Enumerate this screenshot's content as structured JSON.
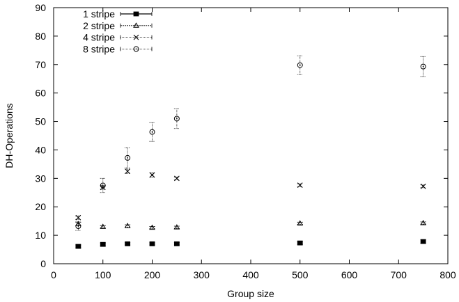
{
  "chart_data": {
    "type": "scatter",
    "title": "",
    "xlabel": "Group size",
    "ylabel": "DH-Operations",
    "xlim": [
      0,
      800
    ],
    "ylim": [
      0,
      90
    ],
    "x_ticks": [
      0,
      100,
      200,
      300,
      400,
      500,
      600,
      700,
      800
    ],
    "y_ticks": [
      0,
      10,
      20,
      30,
      40,
      50,
      60,
      70,
      80,
      90
    ],
    "grid": false,
    "legend_position": "top-left",
    "error_bars": true,
    "x": [
      50,
      100,
      150,
      200,
      250,
      500,
      750
    ],
    "series": [
      {
        "name": "1 stripe",
        "marker": "filled-square",
        "values": [
          6.1,
          6.8,
          7.0,
          7.0,
          7.0,
          7.3,
          7.8
        ],
        "errors": [
          0.5,
          0.5,
          0.4,
          0.4,
          0.4,
          0.5,
          0.6
        ]
      },
      {
        "name": "2 stripe",
        "marker": "triangle",
        "values": [
          14.0,
          13.0,
          13.3,
          12.7,
          12.8,
          14.2,
          14.3
        ],
        "errors": [
          0.6,
          0.4,
          0.4,
          0.4,
          0.4,
          0.4,
          0.4
        ]
      },
      {
        "name": "4 stripe",
        "marker": "cross",
        "values": [
          16.2,
          26.8,
          32.5,
          31.2,
          30.0,
          27.6,
          27.2
        ],
        "errors": [
          0.6,
          0.6,
          0.8,
          0.8,
          0.5,
          0.5,
          0.5
        ]
      },
      {
        "name": "8 stripe",
        "marker": "circle",
        "values": [
          13.2,
          27.5,
          37.2,
          46.3,
          51.0,
          69.8,
          69.3
        ],
        "errors": [
          1.5,
          2.5,
          3.5,
          3.3,
          3.5,
          3.3,
          3.5
        ]
      }
    ]
  }
}
